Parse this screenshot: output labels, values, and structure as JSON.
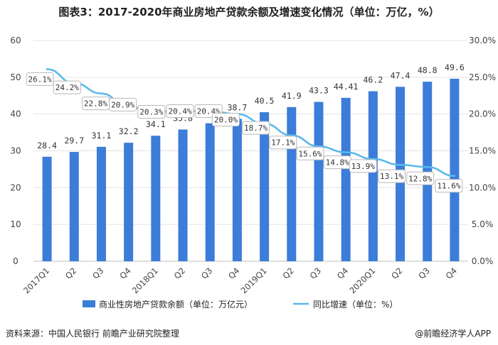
{
  "title": "图表3：2017-2020年商业房地产贷款余额及增速变化情况（单位：万亿，%）",
  "source": "资料来源：中国人民银行 前瞻产业研究院整理",
  "credit": "@前瞻经济学人APP",
  "colors": {
    "bar": "#3b7dd8",
    "line": "#5bb8ea",
    "grid": "#e3e3e3",
    "label_border": "#b8b8b8"
  },
  "chart_data": {
    "type": "bar",
    "categories": [
      "2017Q1",
      "Q2",
      "Q3",
      "Q4",
      "2018Q1",
      "Q2",
      "Q3",
      "Q4",
      "2019Q1",
      "Q2",
      "Q3",
      "Q4",
      "2020Q1",
      "Q2",
      "Q3",
      "Q4"
    ],
    "series": [
      {
        "name": "商业性房地产贷款余额（单位：万亿元）",
        "type": "bar",
        "axis": "left",
        "values": [
          28.4,
          29.7,
          31.1,
          32.2,
          34.1,
          35.8,
          37.5,
          38.7,
          40.5,
          41.9,
          43.3,
          44.41,
          46.2,
          47.4,
          48.8,
          49.6
        ],
        "labels": [
          "28.4",
          "29.7",
          "31.1",
          "32.2",
          "34.1",
          "35.8",
          "37.5",
          "38.7",
          "40.5",
          "41.9",
          "43.3",
          "44.41",
          "46.2",
          "47.4",
          "48.8",
          "49.6"
        ]
      },
      {
        "name": "同比增速（单位：%）",
        "type": "line",
        "axis": "right",
        "values": [
          26.1,
          24.2,
          22.8,
          20.9,
          20.3,
          20.4,
          20.4,
          20.0,
          18.7,
          17.1,
          15.6,
          14.8,
          13.9,
          13.1,
          12.8,
          11.6
        ],
        "labels": [
          "26.1%",
          "24.2%",
          "22.8%",
          "20.9%",
          "20.3%",
          "20.4%",
          "20.4%",
          "20.0%",
          "18.7%",
          "17.1%",
          "15.6%",
          "14.8%",
          "13.9%",
          "13.1%",
          "12.8%",
          "11.6%"
        ]
      }
    ],
    "y_left": {
      "min": 0,
      "max": 60,
      "ticks": [
        "0",
        "10",
        "20",
        "30",
        "40",
        "50",
        "60"
      ]
    },
    "y_right": {
      "min": 0,
      "max": 30,
      "ticks": [
        "0.0%",
        "5.0%",
        "10.0%",
        "15.0%",
        "20.0%",
        "25.0%",
        "30.0%"
      ]
    },
    "grid": true,
    "legend_position": "bottom"
  }
}
